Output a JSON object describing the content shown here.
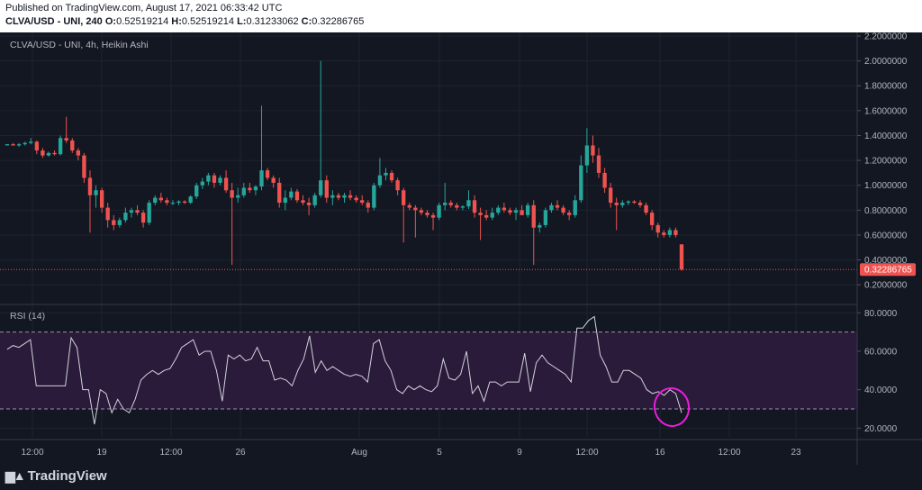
{
  "header": {
    "published": "Published on TradingView.com, August 17, 2021 06:33:42 UTC",
    "symbol": "CLVA/USD - UNI, 240",
    "o_label": "O:",
    "o_value": "0.52519214",
    "h_label": "H:",
    "h_value": "0.52519214",
    "l_label": "L:",
    "l_value": "0.31233062",
    "c_label": "C:",
    "c_value": "0.32286765"
  },
  "brand": {
    "name": "TradingView",
    "logo": "tradingview-logo-icon"
  },
  "colors": {
    "up": "#26a69a",
    "down": "#ef5350",
    "rsi_line": "#d1d4dc",
    "rsi_band": "#2a1b3a",
    "annotation": "#e91ed9",
    "background": "#131722"
  },
  "chart_data": [
    {
      "type": "candlestick",
      "title": "CLVA/USD - UNI, 4h, Heikin Ashi",
      "ylim": [
        0.1,
        2.2
      ],
      "y_ticks": [
        "2.2000000",
        "2.0000000",
        "1.8000000",
        "1.6000000",
        "1.4000000",
        "1.2000000",
        "1.0000000",
        "0.8000000",
        "0.6000000",
        "0.4000000",
        "0.2000000"
      ],
      "last_price": 0.32286765,
      "last_price_label": "0.32286765",
      "x_ticks": [
        "12:00",
        "19",
        "12:00",
        "26",
        "Aug",
        "5",
        "9",
        "12:00",
        "16",
        "12:00",
        "23"
      ],
      "candles": [
        [
          1.32,
          1.33,
          1.32,
          1.33
        ],
        [
          1.33,
          1.34,
          1.32,
          1.32
        ],
        [
          1.32,
          1.34,
          1.31,
          1.33
        ],
        [
          1.33,
          1.35,
          1.32,
          1.34
        ],
        [
          1.34,
          1.38,
          1.33,
          1.35
        ],
        [
          1.35,
          1.36,
          1.25,
          1.28
        ],
        [
          1.28,
          1.3,
          1.22,
          1.24
        ],
        [
          1.24,
          1.27,
          1.23,
          1.26
        ],
        [
          1.26,
          1.28,
          1.24,
          1.25
        ],
        [
          1.25,
          1.4,
          1.24,
          1.38
        ],
        [
          1.38,
          1.55,
          1.34,
          1.36
        ],
        [
          1.36,
          1.38,
          1.26,
          1.28
        ],
        [
          1.28,
          1.3,
          1.2,
          1.24
        ],
        [
          1.24,
          1.26,
          1.02,
          1.06
        ],
        [
          1.06,
          1.12,
          0.62,
          0.92
        ],
        [
          0.92,
          1.0,
          0.82,
          0.96
        ],
        [
          0.96,
          0.98,
          0.78,
          0.82
        ],
        [
          0.82,
          0.86,
          0.66,
          0.72
        ],
        [
          0.72,
          0.76,
          0.64,
          0.68
        ],
        [
          0.68,
          0.74,
          0.66,
          0.72
        ],
        [
          0.72,
          0.82,
          0.7,
          0.78
        ],
        [
          0.78,
          0.82,
          0.74,
          0.8
        ],
        [
          0.8,
          0.84,
          0.76,
          0.78
        ],
        [
          0.78,
          0.8,
          0.66,
          0.7
        ],
        [
          0.7,
          0.88,
          0.68,
          0.86
        ],
        [
          0.86,
          0.92,
          0.84,
          0.9
        ],
        [
          0.9,
          0.94,
          0.86,
          0.88
        ],
        [
          0.88,
          0.9,
          0.84,
          0.86
        ],
        [
          0.86,
          0.88,
          0.84,
          0.86
        ],
        [
          0.86,
          0.88,
          0.84,
          0.87
        ],
        [
          0.87,
          0.88,
          0.85,
          0.86
        ],
        [
          0.86,
          0.92,
          0.85,
          0.91
        ],
        [
          0.91,
          1.02,
          0.89,
          1.0
        ],
        [
          1.0,
          1.06,
          0.97,
          1.03
        ],
        [
          1.03,
          1.1,
          1.0,
          1.08
        ],
        [
          1.08,
          1.1,
          0.98,
          1.02
        ],
        [
          1.02,
          1.08,
          1.0,
          1.06
        ],
        [
          1.06,
          1.12,
          0.94,
          0.96
        ],
        [
          0.96,
          1.02,
          0.36,
          0.9
        ],
        [
          0.9,
          0.98,
          0.86,
          0.92
        ],
        [
          0.92,
          1.02,
          0.9,
          0.98
        ],
        [
          0.98,
          1.02,
          0.94,
          0.96
        ],
        [
          0.96,
          1.0,
          0.92,
          0.99
        ],
        [
          0.99,
          1.64,
          0.96,
          1.12
        ],
        [
          1.12,
          1.14,
          1.04,
          1.06
        ],
        [
          1.06,
          1.08,
          0.98,
          1.02
        ],
        [
          1.02,
          1.06,
          0.82,
          0.86
        ],
        [
          0.86,
          0.96,
          0.8,
          0.9
        ],
        [
          0.9,
          0.98,
          0.88,
          0.95
        ],
        [
          0.95,
          0.97,
          0.86,
          0.88
        ],
        [
          0.88,
          0.92,
          0.84,
          0.86
        ],
        [
          0.86,
          0.9,
          0.76,
          0.84
        ],
        [
          0.84,
          0.94,
          0.82,
          0.92
        ],
        [
          0.92,
          2.0,
          0.9,
          1.04
        ],
        [
          1.04,
          1.08,
          0.86,
          0.9
        ],
        [
          0.9,
          0.96,
          0.84,
          0.92
        ],
        [
          0.92,
          0.94,
          0.88,
          0.9
        ],
        [
          0.9,
          0.94,
          0.86,
          0.92
        ],
        [
          0.92,
          0.96,
          0.88,
          0.9
        ],
        [
          0.9,
          0.92,
          0.86,
          0.88
        ],
        [
          0.88,
          0.92,
          0.84,
          0.86
        ],
        [
          0.86,
          0.88,
          0.78,
          0.82
        ],
        [
          0.82,
          1.02,
          0.8,
          1.0
        ],
        [
          1.0,
          1.22,
          0.98,
          1.08
        ],
        [
          1.08,
          1.14,
          1.04,
          1.1
        ],
        [
          1.1,
          1.12,
          1.02,
          1.04
        ],
        [
          1.04,
          1.06,
          0.92,
          0.96
        ],
        [
          0.96,
          0.98,
          0.54,
          0.84
        ],
        [
          0.84,
          0.86,
          0.8,
          0.82
        ],
        [
          0.82,
          0.84,
          0.58,
          0.8
        ],
        [
          0.8,
          0.82,
          0.76,
          0.78
        ],
        [
          0.78,
          0.8,
          0.74,
          0.76
        ],
        [
          0.76,
          0.78,
          0.64,
          0.74
        ],
        [
          0.74,
          0.86,
          0.72,
          0.84
        ],
        [
          0.84,
          1.02,
          0.8,
          0.86
        ],
        [
          0.86,
          0.88,
          0.82,
          0.84
        ],
        [
          0.84,
          0.86,
          0.8,
          0.82
        ],
        [
          0.82,
          0.84,
          0.8,
          0.83
        ],
        [
          0.83,
          0.96,
          0.81,
          0.88
        ],
        [
          0.88,
          0.92,
          0.74,
          0.78
        ],
        [
          0.78,
          0.82,
          0.56,
          0.76
        ],
        [
          0.76,
          0.8,
          0.72,
          0.74
        ],
        [
          0.74,
          0.82,
          0.72,
          0.78
        ],
        [
          0.78,
          0.84,
          0.76,
          0.82
        ],
        [
          0.82,
          0.86,
          0.78,
          0.8
        ],
        [
          0.8,
          0.82,
          0.76,
          0.78
        ],
        [
          0.78,
          0.82,
          0.72,
          0.8
        ],
        [
          0.8,
          0.84,
          0.78,
          0.76
        ],
        [
          0.76,
          0.86,
          0.74,
          0.84
        ],
        [
          0.84,
          0.88,
          0.36,
          0.66
        ],
        [
          0.66,
          0.7,
          0.62,
          0.68
        ],
        [
          0.68,
          0.82,
          0.66,
          0.8
        ],
        [
          0.8,
          0.86,
          0.78,
          0.84
        ],
        [
          0.84,
          0.88,
          0.8,
          0.82
        ],
        [
          0.82,
          0.84,
          0.76,
          0.78
        ],
        [
          0.78,
          0.8,
          0.72,
          0.76
        ],
        [
          0.76,
          0.92,
          0.74,
          0.88
        ],
        [
          0.88,
          1.24,
          0.86,
          1.16
        ],
        [
          1.16,
          1.46,
          1.1,
          1.32
        ],
        [
          1.32,
          1.4,
          1.18,
          1.24
        ],
        [
          1.24,
          1.3,
          1.06,
          1.1
        ],
        [
          1.1,
          1.14,
          0.94,
          0.98
        ],
        [
          0.98,
          1.02,
          0.82,
          0.86
        ],
        [
          0.86,
          0.9,
          0.64,
          0.84
        ],
        [
          0.84,
          0.88,
          0.82,
          0.86
        ],
        [
          0.86,
          0.88,
          0.84,
          0.87
        ],
        [
          0.87,
          0.88,
          0.85,
          0.86
        ],
        [
          0.86,
          0.88,
          0.82,
          0.84
        ],
        [
          0.84,
          0.86,
          0.76,
          0.78
        ],
        [
          0.78,
          0.8,
          0.64,
          0.68
        ],
        [
          0.68,
          0.7,
          0.58,
          0.62
        ],
        [
          0.62,
          0.64,
          0.58,
          0.6
        ],
        [
          0.6,
          0.66,
          0.58,
          0.64
        ],
        [
          0.64,
          0.66,
          0.58,
          0.6
        ],
        [
          0.525,
          0.525,
          0.312,
          0.323
        ]
      ]
    },
    {
      "type": "line",
      "title": "RSI (14)",
      "ylim": [
        15,
        82
      ],
      "y_ticks": [
        "80.0000",
        "60.0000",
        "40.0000",
        "20.0000"
      ],
      "bands": [
        30,
        70
      ],
      "values": [
        61,
        63,
        62,
        64,
        66,
        42,
        42,
        42,
        42,
        42,
        42,
        67,
        62,
        40,
        40,
        22,
        40,
        38,
        28,
        35,
        30,
        28,
        35,
        45,
        48,
        50,
        48,
        50,
        51,
        56,
        62,
        64,
        66,
        58,
        60,
        60,
        50,
        34,
        58,
        56,
        58,
        55,
        56,
        62,
        55,
        55,
        45,
        46,
        45,
        42,
        50,
        56,
        68,
        49,
        55,
        50,
        52,
        50,
        48,
        47,
        48,
        47,
        44,
        64,
        66,
        55,
        50,
        40,
        38,
        42,
        40,
        42,
        40,
        39,
        42,
        56,
        46,
        45,
        48,
        60,
        38,
        42,
        34,
        44,
        44,
        42,
        44,
        44,
        44,
        59,
        39,
        54,
        58,
        54,
        52,
        50,
        48,
        44,
        72,
        72,
        76,
        78,
        58,
        52,
        44,
        44,
        50,
        50,
        48,
        46,
        40,
        38,
        39,
        37,
        40,
        38,
        28
      ]
    }
  ]
}
